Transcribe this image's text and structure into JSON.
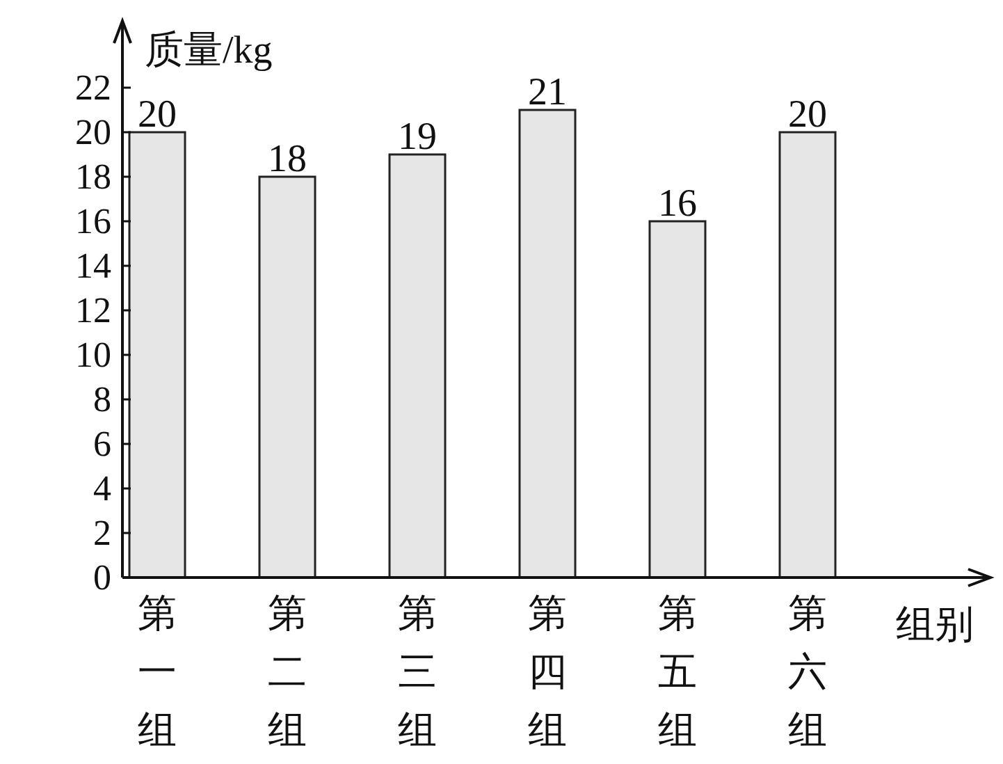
{
  "chart_data": {
    "type": "bar",
    "ylabel": "质量/kg",
    "xlabel": "组别",
    "categories": [
      "第一组",
      "第二组",
      "第三组",
      "第四组",
      "第五组",
      "第六组"
    ],
    "values": [
      20,
      18,
      19,
      21,
      16,
      20
    ],
    "color": "#e6e6e6",
    "ylim": [
      0,
      25
    ],
    "yticks": [
      0,
      2,
      4,
      6,
      8,
      10,
      12,
      14,
      16,
      18,
      20,
      22
    ],
    "data_labels": true,
    "grid": false
  }
}
